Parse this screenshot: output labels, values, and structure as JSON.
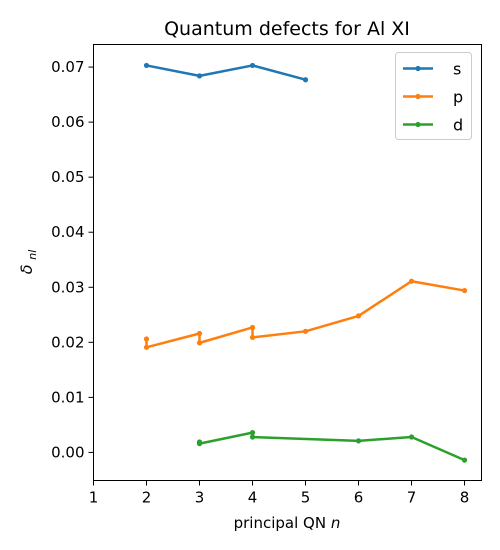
{
  "chart_data": {
    "type": "line",
    "title": "Quantum defects for Al XI",
    "xlabel": "principal QN",
    "xlabel_var": "n",
    "ylabel_main": "δ",
    "ylabel_sub": "nl",
    "xlim": [
      1,
      8.32
    ],
    "ylim": [
      -0.0051,
      0.0741
    ],
    "xticks": [
      1,
      2,
      3,
      4,
      5,
      6,
      7,
      8
    ],
    "xtick_labels": [
      "1",
      "2",
      "3",
      "4",
      "5",
      "6",
      "7",
      "8"
    ],
    "yticks": [
      0.0,
      0.01,
      0.02,
      0.03,
      0.04,
      0.05,
      0.06,
      0.07
    ],
    "ytick_labels": [
      "0.00",
      "0.01",
      "0.02",
      "0.03",
      "0.04",
      "0.05",
      "0.06",
      "0.07"
    ],
    "grid": false,
    "legend_position": "top-right",
    "series": [
      {
        "name": "s",
        "color": "#1f77b4",
        "x": [
          2,
          3,
          4,
          5
        ],
        "y": [
          0.0703,
          0.0684,
          0.0703,
          0.0677
        ]
      },
      {
        "name": "p",
        "color": "#ff7f0e",
        "x": [
          2,
          2,
          3,
          3,
          4,
          4,
          5,
          6,
          7,
          8
        ],
        "y": [
          0.0206,
          0.0191,
          0.0216,
          0.0199,
          0.0227,
          0.0209,
          0.022,
          0.0248,
          0.0311,
          0.0294
        ]
      },
      {
        "name": "d",
        "color": "#2ca02c",
        "x": [
          3,
          3,
          4,
          4,
          6,
          7,
          8
        ],
        "y": [
          0.0019,
          0.0016,
          0.0036,
          0.0028,
          0.0021,
          0.0028,
          -0.0014
        ]
      }
    ]
  }
}
